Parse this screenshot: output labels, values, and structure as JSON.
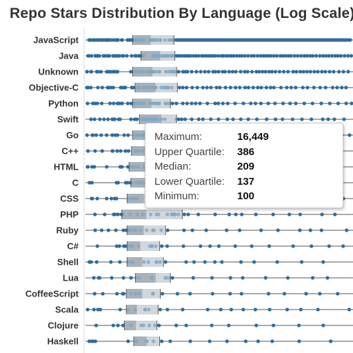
{
  "chart_data": {
    "type": "boxplot",
    "title": "Repo Stars Distribution By Language (Log Scale)",
    "scale": "log",
    "categories": [
      "JavaScript",
      "Java",
      "Unknown",
      "Objective-C",
      "Python",
      "Swift",
      "Go",
      "C++",
      "HTML",
      "C",
      "CSS",
      "PHP",
      "Ruby",
      "C#",
      "Shell",
      "Lua",
      "CoffeeScript",
      "Scala",
      "Clojure",
      "Haskell"
    ],
    "boxes": [
      {
        "category": "JavaScript",
        "lower_quartile": 165,
        "median": 225,
        "upper_quartile": 335,
        "maximum": 60000
      },
      {
        "category": "Java",
        "lower_quartile": 190,
        "median": 265,
        "upper_quartile": 340,
        "maximum": 55000
      },
      {
        "category": "Unknown",
        "lower_quartile": 165,
        "median": 232,
        "upper_quartile": 350,
        "maximum": 50000
      },
      {
        "category": "Objective-C",
        "lower_quartile": 172,
        "median": 245,
        "upper_quartile": 355,
        "maximum": 50000
      },
      {
        "category": "Python",
        "lower_quartile": 165,
        "median": 228,
        "upper_quartile": 315,
        "maximum": 55000
      },
      {
        "category": "Swift",
        "lower_quartile": 185,
        "median": 270,
        "upper_quartile": 350,
        "maximum": 50000
      },
      {
        "category": "Go",
        "lower_quartile": 165,
        "median": 230,
        "upper_quartile": 330,
        "maximum": 40000
      },
      {
        "category": "C++",
        "lower_quartile": 162,
        "median": 215,
        "upper_quartile": 320,
        "maximum": 40000
      },
      {
        "category": "HTML",
        "lower_quartile": 155,
        "median": 205,
        "upper_quartile": 300,
        "maximum": 40000
      },
      {
        "category": "C",
        "lower_quartile": 160,
        "median": 210,
        "upper_quartile": 310,
        "maximum": 40000
      },
      {
        "category": "CSS",
        "lower_quartile": 150,
        "median": 200,
        "upper_quartile": 300,
        "maximum": 30000
      },
      {
        "category": "PHP",
        "lower_quartile": 137,
        "median": 209,
        "upper_quartile": 386,
        "maximum": 16449,
        "minimum": 100
      },
      {
        "category": "Ruby",
        "lower_quartile": 150,
        "median": 200,
        "upper_quartile": 290,
        "maximum": 40000
      },
      {
        "category": "C#",
        "lower_quartile": 150,
        "median": 188,
        "upper_quartile": 262,
        "maximum": 40000
      },
      {
        "category": "Shell",
        "lower_quartile": 150,
        "median": 195,
        "upper_quartile": 280,
        "maximum": 40000
      },
      {
        "category": "Lua",
        "lower_quartile": 173,
        "median": 245,
        "upper_quartile": 315,
        "maximum": 40000
      },
      {
        "category": "CoffeeScript",
        "lower_quartile": 148,
        "median": 195,
        "upper_quartile": 265,
        "maximum": 40000
      },
      {
        "category": "Scala",
        "lower_quartile": 148,
        "median": 178,
        "upper_quartile": 255,
        "maximum": 40000
      },
      {
        "category": "Clojure",
        "lower_quartile": 143,
        "median": 175,
        "upper_quartile": 250,
        "maximum": 40000
      },
      {
        "category": "Haskell",
        "lower_quartile": 168,
        "median": 210,
        "upper_quartile": 262,
        "maximum": 40000
      }
    ],
    "tooltip": {
      "category": "PHP",
      "rows": [
        {
          "label": "Maximum:",
          "value": "16,449"
        },
        {
          "label": "Upper Quartile:",
          "value": "386"
        },
        {
          "label": "Median:",
          "value": "209"
        },
        {
          "label": "Lower Quartile:",
          "value": "137"
        },
        {
          "label": "Minimum:",
          "value": "100"
        }
      ]
    },
    "colors": {
      "dot": "#2f6c9e",
      "dot_faded": "#7ea7c6",
      "box_lower": "#a9b1b9",
      "box_upper": "#d2d7db",
      "whisker": "#555555",
      "text": "#333333"
    }
  }
}
